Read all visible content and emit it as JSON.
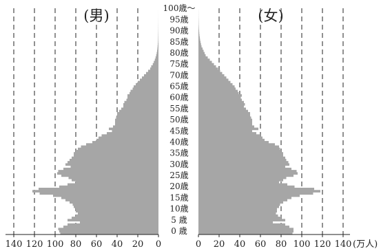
{
  "chart_data": {
    "type": "bar",
    "male_title": "(男)",
    "female_title": "(女)",
    "unit": "(万人)",
    "x_ticks": [
      140,
      120,
      100,
      80,
      60,
      40,
      20,
      0
    ],
    "x_ticks_right": [
      0,
      20,
      40,
      60,
      80,
      100,
      120,
      140
    ],
    "xlim": [
      0,
      140
    ],
    "grid": true,
    "age_labels": [
      "0 歳",
      "5 歳",
      "10歳",
      "15歳",
      "20歳",
      "25歳",
      "30歳",
      "35歳",
      "40歳",
      "45歳",
      "50歳",
      "55歳",
      "60歳",
      "65歳",
      "70歳",
      "75歳",
      "80歳",
      "85歳",
      "90歳",
      "95歳",
      "100歳～"
    ],
    "series": [
      {
        "name": "男",
        "values": [
          95,
          96,
          97,
          92,
          88,
          76,
          88,
          84,
          80,
          78,
          80,
          80,
          82,
          83,
          86,
          90,
          94,
          102,
          115,
          122,
          116,
          96,
          88,
          80,
          84,
          87,
          94,
          98,
          97,
          92,
          85,
          90,
          88,
          86,
          84,
          82,
          82,
          80,
          78,
          75,
          70,
          64,
          60,
          58,
          55,
          50,
          45,
          48,
          44,
          42,
          42,
          42,
          41,
          40,
          40,
          38,
          36,
          34,
          34,
          33,
          31,
          30,
          30,
          28,
          27,
          25,
          24,
          22,
          20,
          18,
          16,
          14,
          12,
          10,
          8,
          7,
          5.5,
          4.5,
          3.5,
          2.8,
          2.2,
          1.7,
          1.3,
          1.0,
          0.8,
          0.6,
          0.45,
          0.35,
          0.3,
          0.25,
          0.2,
          0.15,
          0.12,
          0.1,
          0.08,
          0.06,
          0.05,
          0.04,
          0.03,
          0.02,
          0.02
        ]
      },
      {
        "name": "女",
        "values": [
          91,
          92,
          92,
          88,
          84,
          72,
          84,
          80,
          77,
          75,
          76,
          76,
          78,
          79,
          82,
          86,
          90,
          98,
          111,
          118,
          112,
          93,
          86,
          78,
          82,
          85,
          92,
          96,
          95,
          90,
          84,
          88,
          87,
          85,
          84,
          82,
          82,
          80,
          79,
          78,
          74,
          68,
          64,
          62,
          60,
          56,
          52,
          58,
          54,
          52,
          52,
          52,
          51,
          50,
          50,
          48,
          46,
          44,
          45,
          44,
          42,
          41,
          42,
          39,
          38,
          36,
          35,
          33,
          31,
          29,
          27,
          25,
          23,
          21,
          19,
          17,
          15,
          13,
          11,
          9,
          7,
          6,
          5,
          4,
          3,
          2.5,
          2,
          1.6,
          1.3,
          1.0,
          0.8,
          0.6,
          0.45,
          0.35,
          0.25,
          0.2,
          0.15,
          0.1,
          0.08,
          0.06,
          0.05
        ]
      }
    ]
  }
}
